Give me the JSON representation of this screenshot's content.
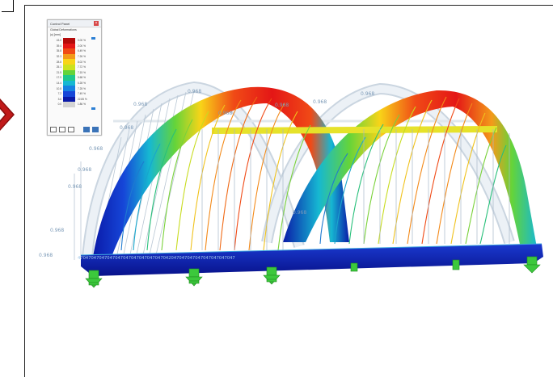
{
  "panel": {
    "title": "Control Panel",
    "subtitle1": "Global Deformations",
    "subtitle2": "|u| [mm]",
    "legend": [
      {
        "value": "43.0",
        "color": "#b40a0a",
        "pct": "0.00 %"
      },
      {
        "value": "39.4",
        "color": "#e41616",
        "pct": "2.00 %"
      },
      {
        "value": "35.8",
        "color": "#f04a16",
        "pct": "6.49 %"
      },
      {
        "value": "32.3",
        "color": "#f39a1a",
        "pct": "7.26 %"
      },
      {
        "value": "28.8",
        "color": "#f8d418",
        "pct": "8.02 %"
      },
      {
        "value": "25.1",
        "color": "#cce21e",
        "pct": "7.72 %"
      },
      {
        "value": "21.5",
        "color": "#64d43a",
        "pct": "7.15 %"
      },
      {
        "value": "17.9",
        "color": "#1ec88c",
        "pct": "5.68 %"
      },
      {
        "value": "14.4",
        "color": "#16b8d2",
        "pct": "6.28 %"
      },
      {
        "value": "10.8",
        "color": "#1682e2",
        "pct": "7.25 %"
      },
      {
        "value": "7.2",
        "color": "#1646d8",
        "pct": "7.49 %"
      },
      {
        "value": "3.6",
        "color": "#0a1aa8",
        "pct": "22.85 %"
      },
      {
        "value": "0.0",
        "color": "#d4d4d4",
        "pct": "1.86 %"
      }
    ]
  },
  "scene": {
    "repeat_label": "0.968",
    "deck_label": "47047047047047047047047047047047042047047047047047047047047"
  }
}
